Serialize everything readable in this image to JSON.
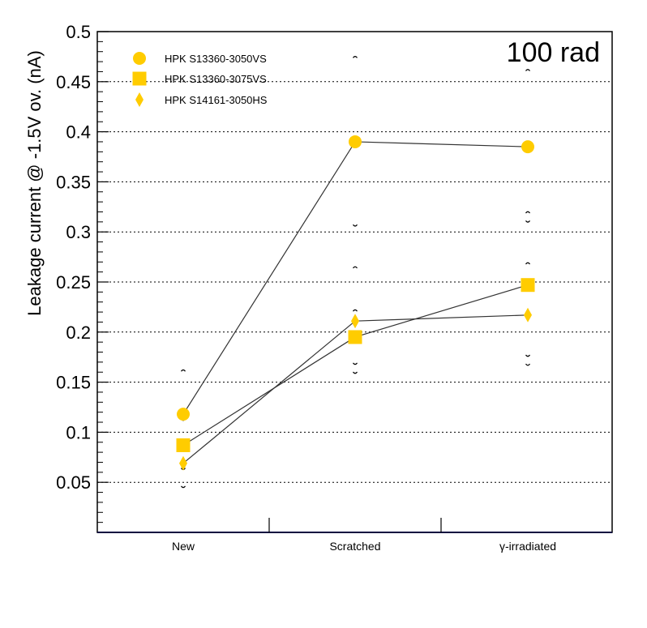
{
  "chart_data": {
    "type": "scatter",
    "annotation": "100 rad",
    "xlabel": "",
    "ylabel": "Leakage current @ -1.5V ov. (nA)",
    "categories": [
      "New",
      "Scratched",
      "γ-irradiated"
    ],
    "ylim": [
      0.0,
      0.5
    ],
    "yticks": [
      "0.05",
      "0.1",
      "0.15",
      "0.2",
      "0.25",
      "0.3",
      "0.35",
      "0.4",
      "0.45",
      "0.5"
    ],
    "grid_y": true,
    "legend_position": "top-left",
    "series": [
      {
        "name": "HPK S13360-3050VS",
        "marker": "circle",
        "color": "#ffcc00",
        "values": [
          0.118,
          0.39,
          0.385
        ],
        "err_low": [
          0.112,
          0.306,
          0.31
        ],
        "err_high": [
          0.162,
          0.475,
          0.462
        ]
      },
      {
        "name": "HPK S13360-3075VS",
        "marker": "square",
        "color": "#ffcc00",
        "values": [
          0.087,
          0.195,
          0.247
        ],
        "err_low": [
          0.063,
          0.159,
          0.167
        ],
        "err_high": [
          0.093,
          0.222,
          0.269
        ]
      },
      {
        "name": "HPK S14161-3050HS",
        "marker": "diamond",
        "color": "#ffcc00",
        "values": [
          0.069,
          0.211,
          0.217
        ],
        "err_low": [
          0.045,
          0.168,
          0.176
        ],
        "err_high": [
          0.092,
          0.265,
          0.32
        ]
      }
    ]
  }
}
